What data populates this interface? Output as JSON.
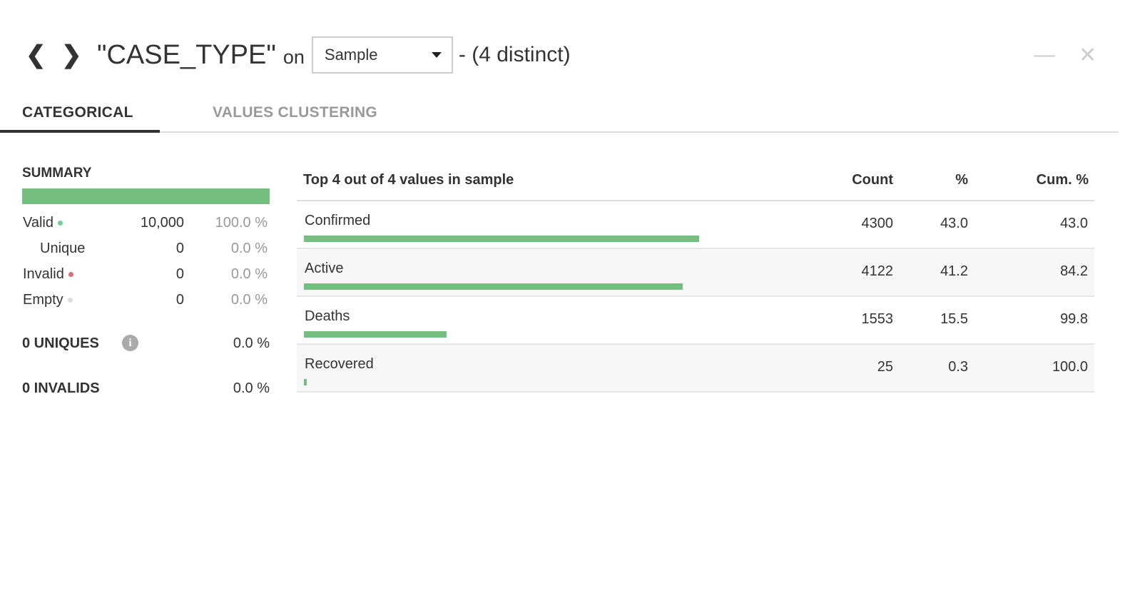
{
  "header": {
    "prev_icon": "chevron-left-icon",
    "next_icon": "chevron-right-icon",
    "column": "\"CASE_TYPE\"",
    "on_label": "on",
    "sample_select": "Sample",
    "distinct": "- (4 distinct)",
    "minimize_icon": "minimize-icon",
    "close_icon": "close-icon"
  },
  "tabs": [
    {
      "label": "CATEGORICAL",
      "active": true
    },
    {
      "label": "VALUES CLUSTERING",
      "active": false
    }
  ],
  "summary": {
    "title": "SUMMARY",
    "valid_fraction": 1.0,
    "rows": [
      {
        "label": "Valid",
        "value": "10,000",
        "pct": "100.0 %",
        "dot": "#6fcf97"
      },
      {
        "label": "Unique",
        "value": "0",
        "pct": "0.0 %"
      },
      {
        "label": "Invalid",
        "value": "0",
        "pct": "0.0 %",
        "dot": "#e06c75"
      },
      {
        "label": "Empty",
        "value": "0",
        "pct": "0.0 %",
        "dot": "#dddddd"
      }
    ],
    "uniques": {
      "label": "0 UNIQUES",
      "pct": "0.0 %",
      "icon": "info-icon"
    },
    "invalids": {
      "label": "0 INVALIDS",
      "pct": "0.0 %"
    }
  },
  "table": {
    "title": "Top 4 out of 4 values in sample",
    "headers": {
      "count": "Count",
      "pct": "%",
      "cum": "Cum. %"
    },
    "rows": [
      {
        "name": "Confirmed",
        "count": "4300",
        "pct": "43.0",
        "cum": "43.0"
      },
      {
        "name": "Active",
        "count": "4122",
        "pct": "41.2",
        "cum": "84.2"
      },
      {
        "name": "Deaths",
        "count": "1553",
        "pct": "15.5",
        "cum": "99.8"
      },
      {
        "name": "Recovered",
        "count": "25",
        "pct": "0.3",
        "cum": "100.0"
      }
    ]
  },
  "colors": {
    "bar": "#74bf7f"
  }
}
